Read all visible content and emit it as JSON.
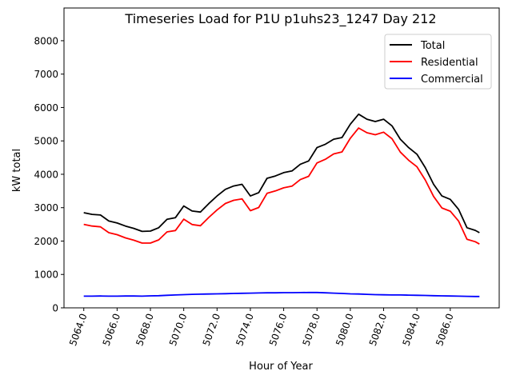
{
  "chart_data": {
    "type": "line",
    "title": "Timeseries Load for P1U p1uhs23_1247  Day 212",
    "xlabel": "Hour of Year",
    "ylabel": "kW total",
    "xlim": [
      5062.8125,
      5088.9375
    ],
    "ylim": [
      0,
      8980
    ],
    "xticks": [
      5064,
      5066,
      5068,
      5070,
      5072,
      5074,
      5076,
      5078,
      5080,
      5082,
      5084,
      5086
    ],
    "xtick_labels": [
      "5064.0",
      "5066.0",
      "5068.0",
      "5070.0",
      "5072.0",
      "5074.0",
      "5076.0",
      "5078.0",
      "5080.0",
      "5082.0",
      "5084.0",
      "5086.0"
    ],
    "yticks": [
      0,
      1000,
      2000,
      3000,
      4000,
      5000,
      6000,
      7000,
      8000
    ],
    "ytick_labels": [
      "0",
      "1000",
      "2000",
      "3000",
      "4000",
      "5000",
      "6000",
      "7000",
      "8000"
    ],
    "grid": false,
    "legend_position": "top-right",
    "x": [
      5064,
      5064.5,
      5065,
      5065.5,
      5066,
      5066.5,
      5067,
      5067.5,
      5068,
      5068.5,
      5069,
      5069.5,
      5070,
      5070.5,
      5071,
      5071.5,
      5072,
      5072.5,
      5073,
      5073.5,
      5074,
      5074.5,
      5075,
      5075.5,
      5076,
      5076.5,
      5077,
      5077.5,
      5078,
      5078.5,
      5079,
      5079.5,
      5080,
      5080.5,
      5081,
      5081.5,
      5082,
      5082.5,
      5083,
      5083.5,
      5084,
      5084.5,
      5085,
      5085.5,
      5086,
      5086.5,
      5087,
      5087.5,
      5087.75
    ],
    "series": [
      {
        "name": "Total",
        "color": "#000000",
        "values": [
          2850,
          2800,
          2780,
          2600,
          2540,
          2450,
          2380,
          2290,
          2300,
          2400,
          2650,
          2700,
          3050,
          2900,
          2870,
          3120,
          3350,
          3550,
          3650,
          3700,
          3350,
          3450,
          3880,
          3950,
          4050,
          4100,
          4300,
          4400,
          4800,
          4900,
          5050,
          5100,
          5500,
          5800,
          5650,
          5580,
          5650,
          5450,
          5050,
          4800,
          4600,
          4200,
          3700,
          3350,
          3250,
          2950,
          2400,
          2320,
          2250
        ]
      },
      {
        "name": "Residential",
        "color": "#ff0000",
        "values": [
          2500,
          2450,
          2425,
          2250,
          2190,
          2095,
          2025,
          1940,
          1940,
          2035,
          2275,
          2315,
          2655,
          2495,
          2460,
          2705,
          2930,
          3125,
          3220,
          3265,
          2910,
          3005,
          3430,
          3500,
          3595,
          3645,
          3842,
          3940,
          4340,
          4450,
          4610,
          4670,
          5080,
          5385,
          5245,
          5185,
          5260,
          5065,
          4665,
          4420,
          4225,
          3830,
          3335,
          2990,
          2895,
          2600,
          2055,
          1980,
          1910
        ]
      },
      {
        "name": "Commercial",
        "color": "#0000ff",
        "values": [
          350,
          350,
          355,
          350,
          350,
          355,
          355,
          350,
          360,
          365,
          375,
          385,
          395,
          405,
          410,
          415,
          420,
          425,
          430,
          435,
          440,
          445,
          450,
          450,
          455,
          455,
          458,
          460,
          460,
          450,
          440,
          430,
          420,
          415,
          405,
          395,
          390,
          385,
          385,
          380,
          375,
          370,
          365,
          360,
          355,
          350,
          345,
          340,
          340
        ]
      }
    ]
  }
}
